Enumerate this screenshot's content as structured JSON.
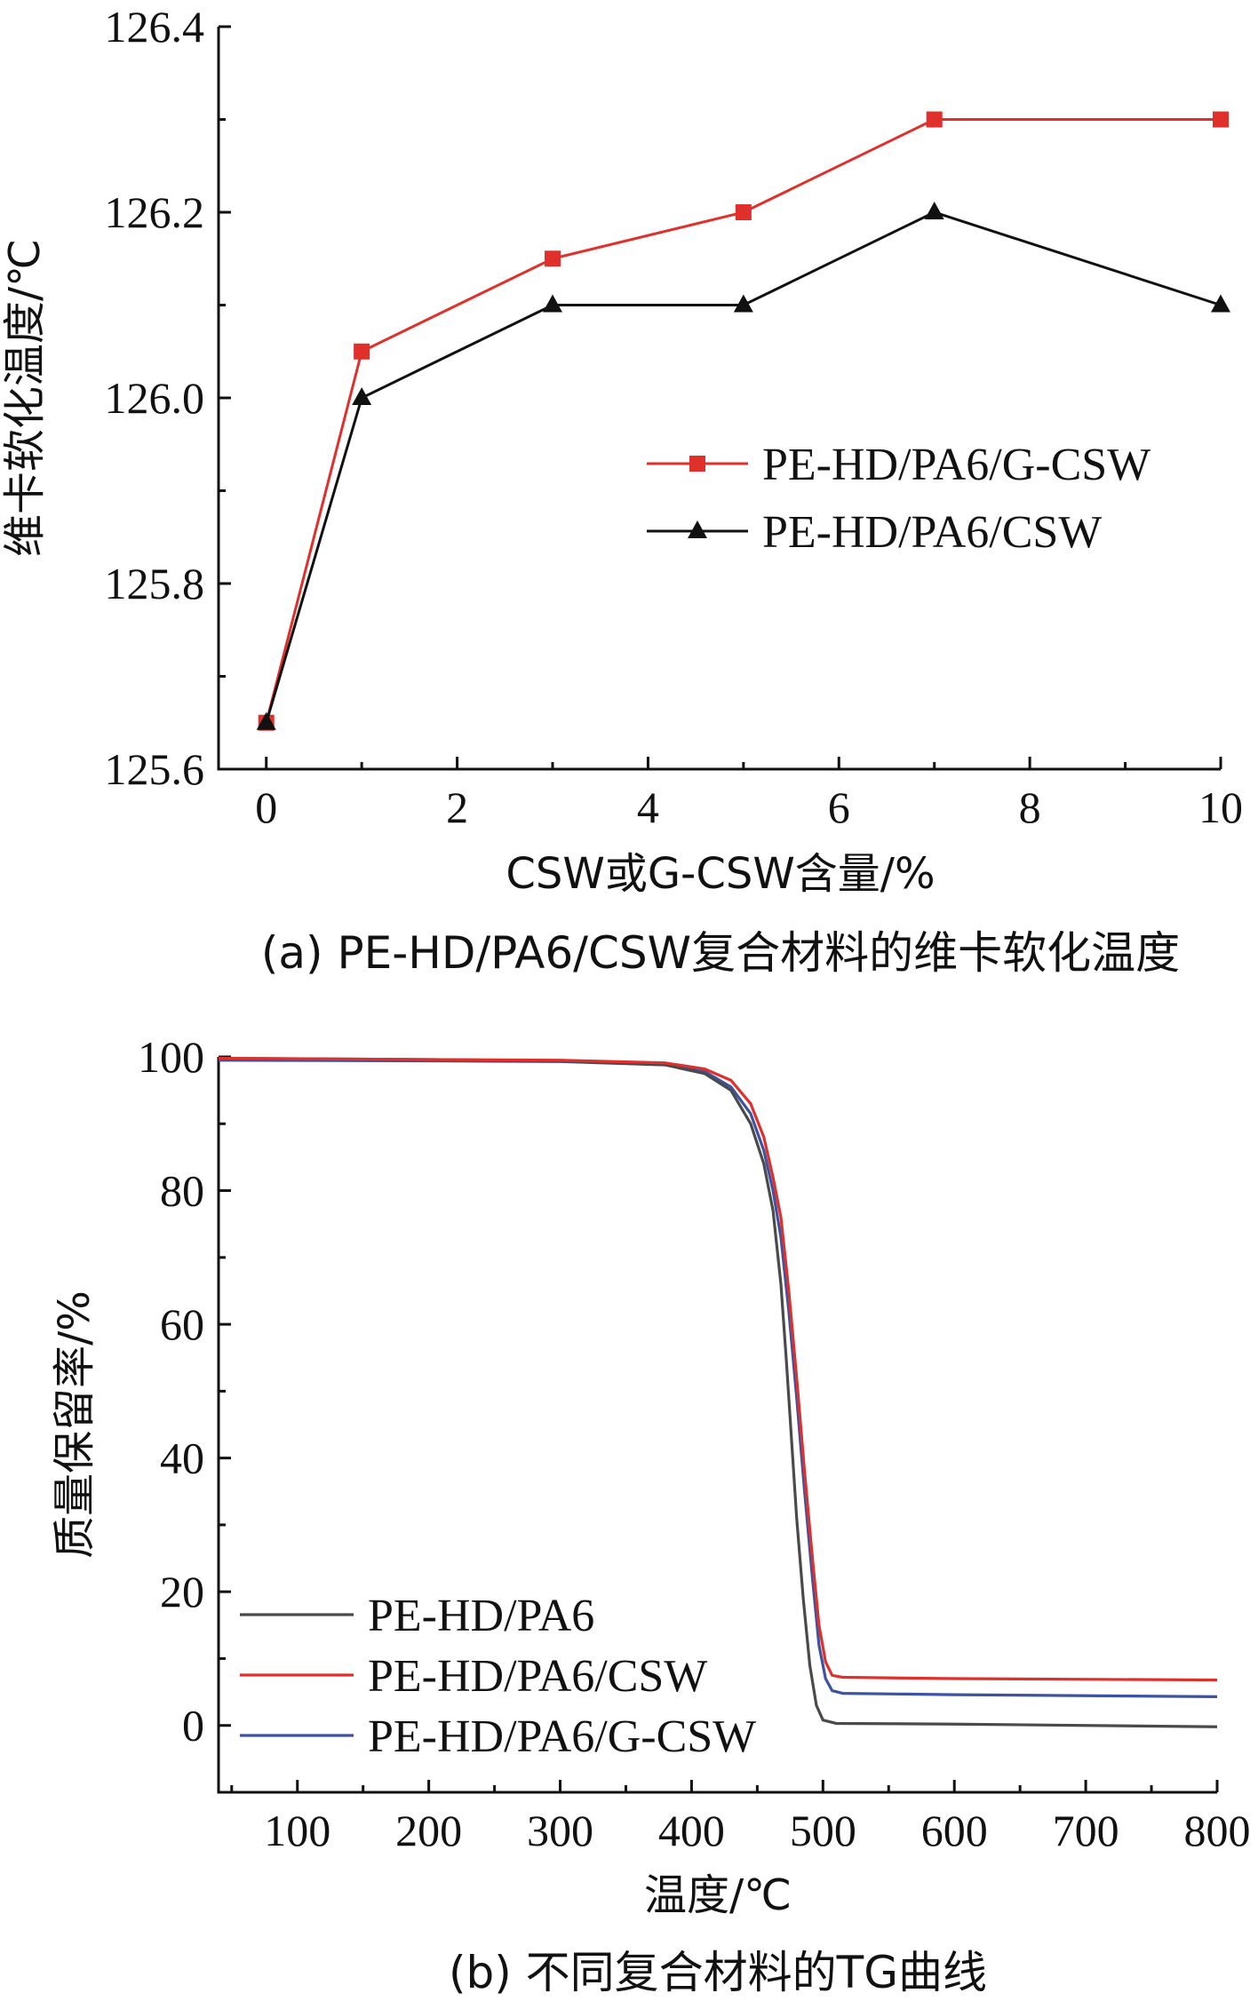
{
  "chart_data": [
    {
      "type": "line",
      "caption": "(a) PE-HD/PA6/CSW复合材料的维卡软化温度",
      "xlabel": "CSW或G-CSW含量/%",
      "ylabel": "维卡软化温度/℃",
      "xlim": [
        -0.5,
        10
      ],
      "ylim": [
        125.6,
        126.4
      ],
      "xticks": [
        0,
        2,
        4,
        6,
        8,
        10
      ],
      "yticks": [
        125.6,
        125.8,
        126.0,
        126.2,
        126.4
      ],
      "ytick_labels": [
        "125.6",
        "125.8",
        "126.0",
        "126.2",
        "126.4"
      ],
      "legend_position": "center-right",
      "x": [
        0,
        1,
        3,
        5,
        7,
        10
      ],
      "series": [
        {
          "name": "PE-HD/PA6/G-CSW",
          "color": "#e0302c",
          "marker": "square",
          "values": [
            125.65,
            126.05,
            126.15,
            126.2,
            126.3,
            126.3
          ]
        },
        {
          "name": "PE-HD/PA6/CSW",
          "color": "#111111",
          "marker": "triangle",
          "values": [
            125.65,
            126.0,
            126.1,
            126.1,
            126.2,
            126.1
          ]
        }
      ]
    },
    {
      "type": "line",
      "caption": "(b) 不同复合材料的TG曲线",
      "xlabel": "温度/℃",
      "ylabel": "质量保留率/%",
      "xlim": [
        40,
        800
      ],
      "ylim": [
        -10,
        100
      ],
      "xticks": [
        100,
        200,
        300,
        400,
        500,
        600,
        700,
        800
      ],
      "yticks": [
        0,
        20,
        40,
        60,
        80,
        100
      ],
      "legend_position": "bottom-left",
      "series": [
        {
          "name": "PE-HD/PA6",
          "color": "#4a4a4a",
          "x": [
            40,
            200,
            300,
            380,
            410,
            430,
            445,
            455,
            462,
            468,
            472,
            476,
            480,
            485,
            490,
            495,
            500,
            510,
            600,
            800
          ],
          "values": [
            99.8,
            99.6,
            99.4,
            98.8,
            97.5,
            95.0,
            90.0,
            84.0,
            77.0,
            66.0,
            55.0,
            43.0,
            31.0,
            19.0,
            9.0,
            3.0,
            0.8,
            0.3,
            0.2,
            -0.2
          ]
        },
        {
          "name": "PE-HD/PA6/CSW",
          "color": "#e0302c",
          "x": [
            40,
            200,
            300,
            380,
            410,
            430,
            445,
            455,
            462,
            468,
            474,
            480,
            486,
            492,
            497,
            502,
            507,
            515,
            600,
            800
          ],
          "values": [
            99.8,
            99.6,
            99.5,
            99.1,
            98.2,
            96.5,
            93.0,
            88.0,
            82.0,
            76.0,
            65.0,
            52.0,
            38.0,
            25.0,
            15.0,
            9.5,
            7.5,
            7.2,
            7.0,
            6.8
          ]
        },
        {
          "name": "PE-HD/PA6/G-CSW",
          "color": "#3d52a0",
          "x": [
            40,
            200,
            300,
            380,
            410,
            430,
            445,
            455,
            462,
            468,
            474,
            480,
            486,
            492,
            497,
            502,
            507,
            515,
            600,
            800
          ],
          "values": [
            99.5,
            99.4,
            99.3,
            98.8,
            97.8,
            95.5,
            91.5,
            86.0,
            80.0,
            73.0,
            62.0,
            49.0,
            35.0,
            22.0,
            12.0,
            7.0,
            5.2,
            4.8,
            4.6,
            4.3
          ]
        }
      ]
    }
  ]
}
